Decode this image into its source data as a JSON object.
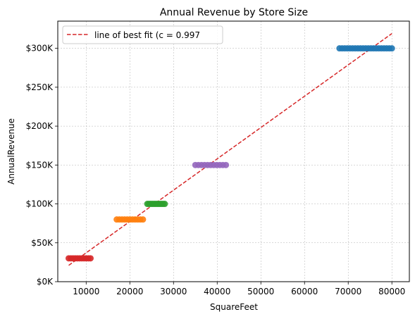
{
  "chart_data": {
    "type": "scatter",
    "title": "Annual Revenue by Store Size",
    "xlabel": "SquareFeet",
    "ylabel": "AnnualRevenue",
    "xlim": [
      3500,
      84000
    ],
    "ylim": [
      0,
      335000
    ],
    "x_ticks": [
      10000,
      20000,
      30000,
      40000,
      50000,
      60000,
      70000,
      80000
    ],
    "x_tick_labels": [
      "10000",
      "20000",
      "30000",
      "40000",
      "50000",
      "60000",
      "70000",
      "80000"
    ],
    "y_ticks": [
      0,
      50000,
      100000,
      150000,
      200000,
      250000,
      300000
    ],
    "y_tick_labels": [
      "$0K",
      "$50K",
      "$100K",
      "$150K",
      "$200K",
      "$250K",
      "$300K"
    ],
    "grid": true,
    "legend_placement": "top-left",
    "series": [
      {
        "color": "#d62728",
        "y": 30000,
        "x": [
          6000,
          6500,
          7000,
          7500,
          8000,
          8500,
          9000,
          9500,
          10000,
          10500,
          11000
        ]
      },
      {
        "color": "#ff7f0e",
        "y": 80000,
        "x": [
          17000,
          17600,
          18200,
          18800,
          19400,
          20000,
          20600,
          21200,
          21800,
          22400,
          23000
        ]
      },
      {
        "color": "#2ca02c",
        "y": 100000,
        "x": [
          24000,
          24400,
          24800,
          25200,
          25600,
          26000,
          26400,
          26800,
          27200,
          27600,
          28000
        ]
      },
      {
        "color": "#9467bd",
        "y": 150000,
        "x": [
          35000,
          35700,
          36400,
          37100,
          37800,
          38500,
          39200,
          39900,
          40600,
          41300,
          42000
        ]
      },
      {
        "color": "#1f77b4",
        "y": 300000,
        "x": [
          68000,
          68600,
          69200,
          69800,
          70400,
          71000,
          71600,
          72200,
          72800,
          73400,
          74000,
          74600,
          75200,
          75800,
          76400,
          77000,
          77600,
          78200,
          78800,
          79400,
          80000
        ]
      }
    ],
    "best_fit": {
      "label": "line of best fit (c = 0.997",
      "color": "#d62728",
      "x": [
        6000,
        80000
      ],
      "y": [
        21000,
        319000
      ]
    }
  }
}
